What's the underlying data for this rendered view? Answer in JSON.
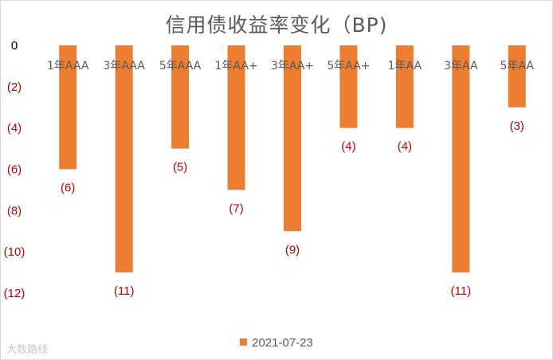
{
  "chart_data": {
    "type": "bar",
    "title": "信用债收益率变化（BP)",
    "categories": [
      "1年AAA",
      "3年AAA",
      "5年AAA",
      "1年AA+",
      "3年AA+",
      "5年AA+",
      "1年AA",
      "3年AA",
      "5年AA"
    ],
    "series": [
      {
        "name": "2021-07-23",
        "values": [
          -6,
          -11,
          -5,
          -7,
          -9,
          -4,
          -4,
          -11,
          -3
        ]
      }
    ],
    "data_labels": [
      "(6)",
      "(11)",
      "(5)",
      "(7)",
      "(9)",
      "(4)",
      "(4)",
      "(11)",
      "(3)"
    ],
    "yticks": [
      0,
      -2,
      -4,
      -6,
      -8,
      -10,
      -12
    ],
    "ytick_labels": [
      "0",
      "(2)",
      "(4)",
      "(6)",
      "(8)",
      "(10)",
      "(12)"
    ],
    "ylim": [
      -12,
      0
    ],
    "grid": false,
    "legend_position": "bottom",
    "colors": {
      "bar": "#ed7d31",
      "negative_label": "#c00000",
      "zero_label": "#000000"
    }
  },
  "watermark": "大数路线"
}
